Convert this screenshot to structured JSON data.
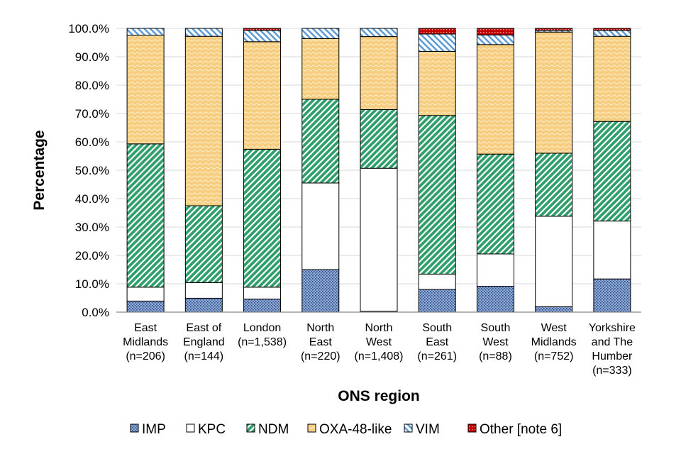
{
  "chart_data": {
    "type": "bar",
    "stacked": true,
    "title": "",
    "xlabel": "ONS region",
    "ylabel": "Percentage",
    "ylim": [
      0,
      100
    ],
    "yticks": [
      "0.0%",
      "10.0%",
      "20.0%",
      "30.0%",
      "40.0%",
      "50.0%",
      "60.0%",
      "70.0%",
      "80.0%",
      "90.0%",
      "100.0%"
    ],
    "grid": true,
    "legend_position": "bottom",
    "categories": [
      [
        "East",
        "Midlands",
        "(n=206)"
      ],
      [
        "East of",
        "England",
        "(n=144)"
      ],
      [
        "London",
        "(n=1,538)"
      ],
      [
        "North",
        "East",
        "(n=220)"
      ],
      [
        "North",
        "West",
        "(n=1,408)"
      ],
      [
        "South",
        "East",
        "(n=261)"
      ],
      [
        "South",
        "West",
        "(n=88)"
      ],
      [
        "West",
        "Midlands",
        "(n=752)"
      ],
      [
        "Yorkshire",
        "and The",
        "Humber",
        "(n=333)"
      ]
    ],
    "series": [
      {
        "name": "IMP",
        "color": "#8EA9DB",
        "pattern": "dots",
        "values": [
          3.9,
          4.9,
          4.6,
          15.0,
          0.3,
          8.0,
          9.1,
          1.9,
          11.7
        ]
      },
      {
        "name": "KPC",
        "color": "#FFFFFF",
        "pattern": "solid",
        "values": [
          4.9,
          5.5,
          4.2,
          30.5,
          50.4,
          5.4,
          11.4,
          31.9,
          20.4
        ]
      },
      {
        "name": "NDM",
        "color": "#2E9E6B",
        "pattern": "diagonal",
        "values": [
          50.5,
          27.1,
          48.6,
          29.5,
          20.7,
          55.9,
          35.2,
          22.2,
          35.1
        ]
      },
      {
        "name": "OXA-48-like",
        "color": "#F5C26B",
        "pattern": "waves",
        "values": [
          38.3,
          59.7,
          37.9,
          21.4,
          25.7,
          22.6,
          38.6,
          42.7,
          30.0
        ]
      },
      {
        "name": "VIM",
        "color": "#5B9BD5",
        "pattern": "hatch",
        "values": [
          2.4,
          2.8,
          4.0,
          3.6,
          2.9,
          6.1,
          3.4,
          0.6,
          2.1
        ]
      },
      {
        "name": "Other [note 6]",
        "color": "#C00000",
        "pattern": "dots",
        "values": [
          0.0,
          0.0,
          0.7,
          0.0,
          0.0,
          2.0,
          2.3,
          0.7,
          0.7
        ]
      }
    ]
  }
}
